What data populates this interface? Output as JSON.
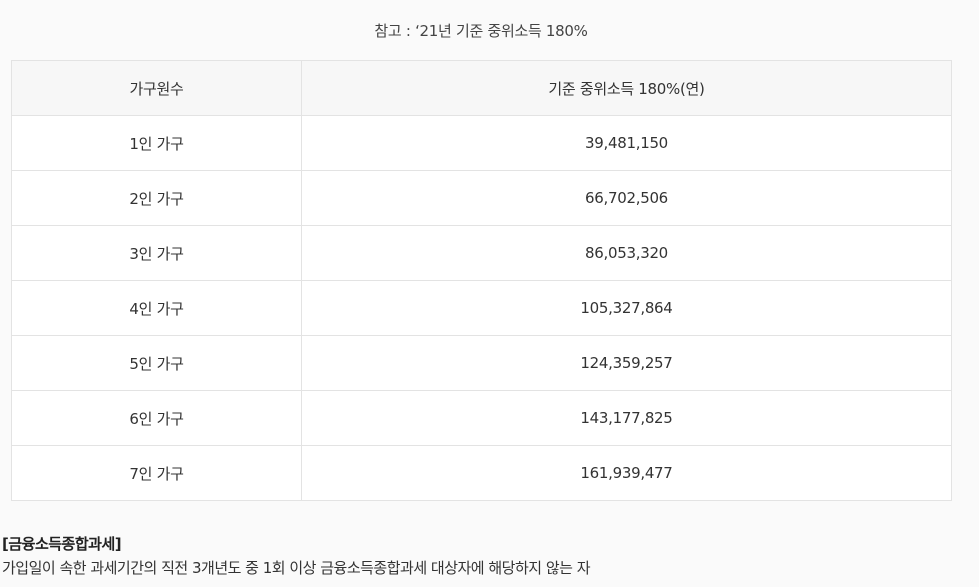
{
  "caption": "참고 : ‘21년 기준 중위소득 180%",
  "table": {
    "headers": [
      "가구원수",
      "기준 중위소득 180%(연)"
    ],
    "rows": [
      {
        "household": "1인 가구",
        "income": "39,481,150"
      },
      {
        "household": "2인 가구",
        "income": "66,702,506"
      },
      {
        "household": "3인 가구",
        "income": "86,053,320"
      },
      {
        "household": "4인 가구",
        "income": "105,327,864"
      },
      {
        "household": "5인 가구",
        "income": "124,359,257"
      },
      {
        "household": "6인 가구",
        "income": "143,177,825"
      },
      {
        "household": "7인 가구",
        "income": "161,939,477"
      }
    ]
  },
  "section": {
    "title": "[금융소득종합과세]",
    "description": "가입일이 속한 과세기간의 직전 3개년도 중 1회 이상 금융소득종합과세 대상자에 해당하지 않는 자"
  },
  "colors": {
    "background": "#fafafa",
    "header_bg": "#f7f7f7",
    "border": "#e3e3e3",
    "text": "#333333"
  }
}
